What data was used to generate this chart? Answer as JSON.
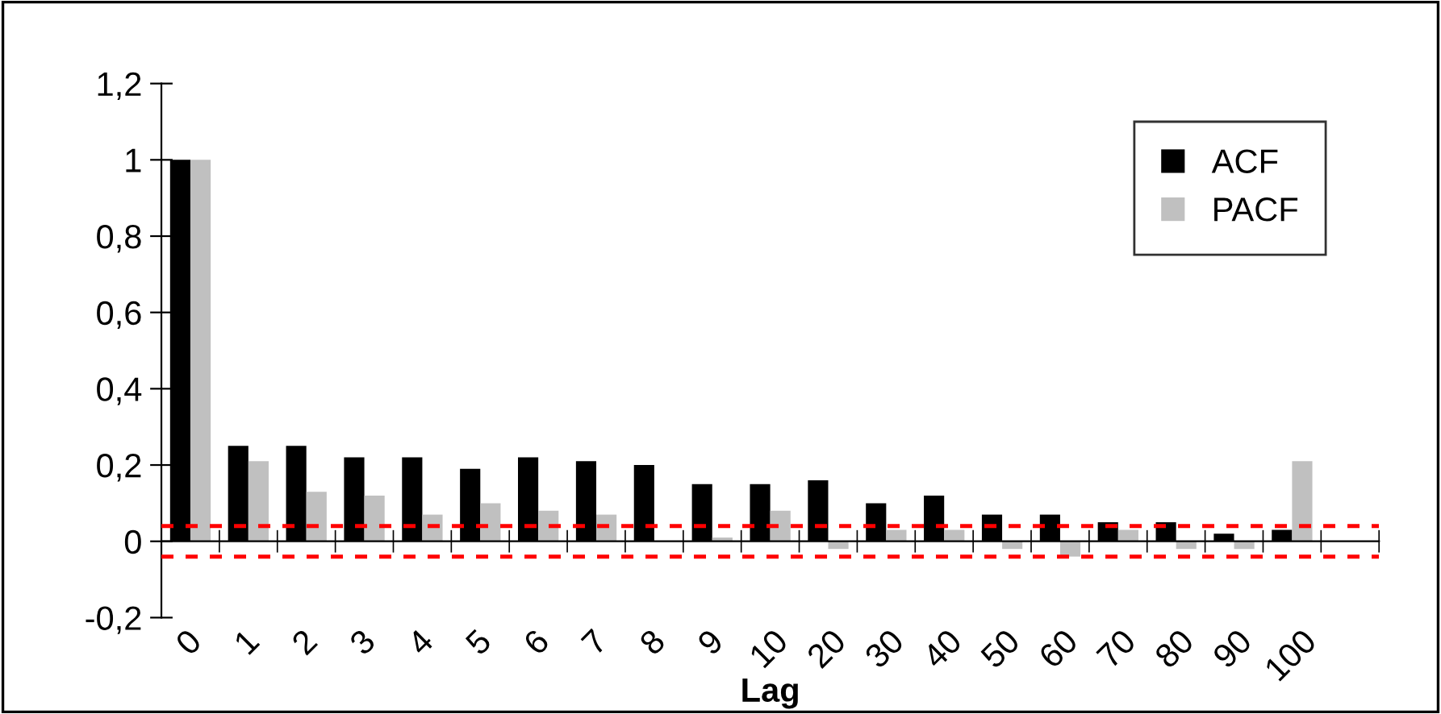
{
  "chart_data": {
    "type": "bar",
    "xlabel": "Lag",
    "categories": [
      "0",
      "1",
      "2",
      "3",
      "4",
      "5",
      "6",
      "7",
      "8",
      "9",
      "10",
      "20",
      "30",
      "40",
      "50",
      "60",
      "70",
      "80",
      "90",
      "100"
    ],
    "series": [
      {
        "name": "ACF",
        "color": "#000000",
        "values": [
          1,
          0.25,
          0.25,
          0.22,
          0.22,
          0.19,
          0.22,
          0.21,
          0.2,
          0.15,
          0.15,
          0.16,
          0.1,
          0.12,
          0.07,
          0.07,
          0.05,
          0.05,
          0.02,
          0.03
        ]
      },
      {
        "name": "PACF",
        "color": "#c0c0c0",
        "values": [
          1,
          0.21,
          0.13,
          0.12,
          0.07,
          0.1,
          0.08,
          0.07,
          0,
          0.01,
          0.08,
          -0.02,
          0.03,
          0.03,
          -0.02,
          -0.04,
          0.03,
          -0.02,
          -0.02,
          0.21
        ]
      }
    ],
    "ylim": [
      -0.2,
      1.2
    ],
    "yticks": [
      {
        "value": -0.2,
        "label": "-0,2"
      },
      0,
      {
        "value": 0.2,
        "label": "0,2"
      },
      {
        "value": 0.4,
        "label": "0,4"
      },
      {
        "value": 0.6,
        "label": "0,6"
      },
      {
        "value": 0.8,
        "label": "0,8"
      },
      1,
      {
        "value": 1.2,
        "label": "1,2"
      }
    ],
    "ref_lines": [
      {
        "axis": "y",
        "value": 0.04,
        "label": null,
        "color": "#ff0000",
        "line_style": "dashed"
      },
      {
        "axis": "y",
        "value": -0.04,
        "label": null,
        "color": "#ff0000",
        "line_style": "dashed"
      }
    ],
    "grid": false,
    "legend": "top right"
  }
}
